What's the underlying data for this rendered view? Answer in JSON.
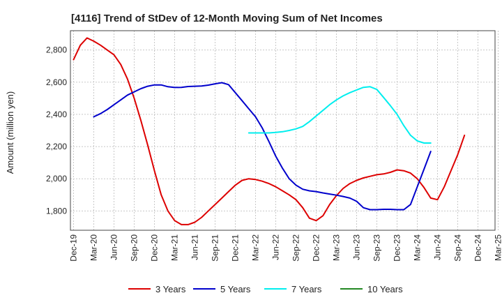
{
  "chart_data": {
    "type": "line",
    "title": "[4116]  Trend of StDev of 12-Month Moving Sum of Net Incomes",
    "xlabel": "",
    "ylabel": "Amount (million yen)",
    "ylim": [
      1680,
      2920
    ],
    "yticks": [
      1800,
      2000,
      2200,
      2400,
      2600,
      2800
    ],
    "ytick_labels": [
      "1,800",
      "2,000",
      "2,200",
      "2,400",
      "2,600",
      "2,800"
    ],
    "xticks": [
      "Dec-19",
      "Mar-20",
      "Jun-20",
      "Sep-20",
      "Dec-20",
      "Mar-21",
      "Jun-21",
      "Sep-21",
      "Dec-21",
      "Mar-22",
      "Jun-22",
      "Sep-22",
      "Dec-22",
      "Mar-23",
      "Jun-23",
      "Sep-23",
      "Dec-23",
      "Mar-24",
      "Jun-24",
      "Sep-24",
      "Dec-24",
      "Mar-25"
    ],
    "grid": true,
    "legend_position": "bottom",
    "series": [
      {
        "name": "3 Years",
        "color": "#dd0000",
        "points": [
          [
            "Dec-19",
            2740
          ],
          [
            "Jan-20",
            2830
          ],
          [
            "Feb-20",
            2875
          ],
          [
            "Mar-20",
            2855
          ],
          [
            "Apr-20",
            2830
          ],
          [
            "May-20",
            2800
          ],
          [
            "Jun-20",
            2770
          ],
          [
            "Jul-20",
            2710
          ],
          [
            "Aug-20",
            2620
          ],
          [
            "Sep-20",
            2500
          ],
          [
            "Oct-20",
            2360
          ],
          [
            "Nov-20",
            2210
          ],
          [
            "Dec-20",
            2050
          ],
          [
            "Jan-21",
            1900
          ],
          [
            "Feb-21",
            1800
          ],
          [
            "Mar-21",
            1740
          ],
          [
            "Apr-21",
            1715
          ],
          [
            "May-21",
            1715
          ],
          [
            "Jun-21",
            1730
          ],
          [
            "Jul-21",
            1760
          ],
          [
            "Aug-21",
            1800
          ],
          [
            "Sep-21",
            1840
          ],
          [
            "Oct-21",
            1880
          ],
          [
            "Nov-21",
            1920
          ],
          [
            "Dec-21",
            1960
          ],
          [
            "Jan-22",
            1990
          ],
          [
            "Feb-22",
            2000
          ],
          [
            "Mar-22",
            1995
          ],
          [
            "Apr-22",
            1985
          ],
          [
            "May-22",
            1970
          ],
          [
            "Jun-22",
            1950
          ],
          [
            "Jul-22",
            1925
          ],
          [
            "Aug-22",
            1900
          ],
          [
            "Sep-22",
            1870
          ],
          [
            "Oct-22",
            1820
          ],
          [
            "Nov-22",
            1755
          ],
          [
            "Dec-22",
            1740
          ],
          [
            "Jan-23",
            1770
          ],
          [
            "Feb-23",
            1840
          ],
          [
            "Mar-23",
            1895
          ],
          [
            "Apr-23",
            1940
          ],
          [
            "May-23",
            1970
          ],
          [
            "Jun-23",
            1990
          ],
          [
            "Jul-23",
            2005
          ],
          [
            "Aug-23",
            2015
          ],
          [
            "Sep-23",
            2025
          ],
          [
            "Oct-23",
            2030
          ],
          [
            "Nov-23",
            2040
          ],
          [
            "Dec-23",
            2055
          ],
          [
            "Jan-24",
            2050
          ],
          [
            "Feb-24",
            2035
          ],
          [
            "Mar-24",
            2000
          ],
          [
            "Apr-24",
            1945
          ],
          [
            "May-24",
            1880
          ],
          [
            "Jun-24",
            1870
          ],
          [
            "Jul-24",
            1950
          ],
          [
            "Aug-24",
            2050
          ],
          [
            "Sep-24",
            2150
          ],
          [
            "Oct-24",
            2270
          ]
        ]
      },
      {
        "name": "5 Years",
        "color": "#0000cc",
        "points": [
          [
            "Mar-20",
            2385
          ],
          [
            "Apr-20",
            2405
          ],
          [
            "May-20",
            2430
          ],
          [
            "Jun-20",
            2460
          ],
          [
            "Jul-20",
            2490
          ],
          [
            "Aug-20",
            2520
          ],
          [
            "Sep-20",
            2540
          ],
          [
            "Oct-20",
            2560
          ],
          [
            "Nov-20",
            2575
          ],
          [
            "Dec-20",
            2583
          ],
          [
            "Jan-21",
            2583
          ],
          [
            "Feb-21",
            2572
          ],
          [
            "Mar-21",
            2567
          ],
          [
            "Apr-21",
            2568
          ],
          [
            "May-21",
            2573
          ],
          [
            "Jun-21",
            2575
          ],
          [
            "Jul-21",
            2576
          ],
          [
            "Aug-21",
            2582
          ],
          [
            "Sep-21",
            2590
          ],
          [
            "Oct-21",
            2597
          ],
          [
            "Nov-21",
            2585
          ],
          [
            "Dec-21",
            2535
          ],
          [
            "Jan-22",
            2485
          ],
          [
            "Feb-22",
            2435
          ],
          [
            "Mar-22",
            2385
          ],
          [
            "Apr-22",
            2315
          ],
          [
            "May-22",
            2230
          ],
          [
            "Jun-22",
            2140
          ],
          [
            "Jul-22",
            2065
          ],
          [
            "Aug-22",
            2000
          ],
          [
            "Sep-22",
            1960
          ],
          [
            "Oct-22",
            1935
          ],
          [
            "Nov-22",
            1925
          ],
          [
            "Dec-22",
            1920
          ],
          [
            "Jan-23",
            1912
          ],
          [
            "Feb-23",
            1905
          ],
          [
            "Mar-23",
            1898
          ],
          [
            "Apr-23",
            1890
          ],
          [
            "May-23",
            1880
          ],
          [
            "Jun-23",
            1860
          ],
          [
            "Jul-23",
            1820
          ],
          [
            "Aug-23",
            1808
          ],
          [
            "Sep-23",
            1808
          ],
          [
            "Oct-23",
            1810
          ],
          [
            "Nov-23",
            1810
          ],
          [
            "Dec-23",
            1808
          ],
          [
            "Jan-24",
            1808
          ],
          [
            "Feb-24",
            1840
          ],
          [
            "Mar-24",
            1950
          ],
          [
            "Apr-24",
            2060
          ],
          [
            "May-24",
            2170
          ]
        ]
      },
      {
        "name": "7 Years",
        "color": "#00eeee",
        "points": [
          [
            "Feb-22",
            2285
          ],
          [
            "Mar-22",
            2285
          ],
          [
            "Apr-22",
            2285
          ],
          [
            "May-22",
            2285
          ],
          [
            "Jun-22",
            2288
          ],
          [
            "Jul-22",
            2292
          ],
          [
            "Aug-22",
            2300
          ],
          [
            "Sep-22",
            2310
          ],
          [
            "Oct-22",
            2325
          ],
          [
            "Nov-22",
            2355
          ],
          [
            "Dec-22",
            2390
          ],
          [
            "Jan-23",
            2425
          ],
          [
            "Feb-23",
            2460
          ],
          [
            "Mar-23",
            2490
          ],
          [
            "Apr-23",
            2515
          ],
          [
            "May-23",
            2535
          ],
          [
            "Jun-23",
            2552
          ],
          [
            "Jul-23",
            2568
          ],
          [
            "Aug-23",
            2572
          ],
          [
            "Sep-23",
            2555
          ],
          [
            "Oct-23",
            2505
          ],
          [
            "Nov-23",
            2455
          ],
          [
            "Dec-23",
            2400
          ],
          [
            "Jan-24",
            2330
          ],
          [
            "Feb-24",
            2270
          ],
          [
            "Mar-24",
            2235
          ],
          [
            "Apr-24",
            2222
          ],
          [
            "May-24",
            2222
          ]
        ]
      },
      {
        "name": "10 Years",
        "color": "#228822",
        "points": []
      }
    ]
  }
}
